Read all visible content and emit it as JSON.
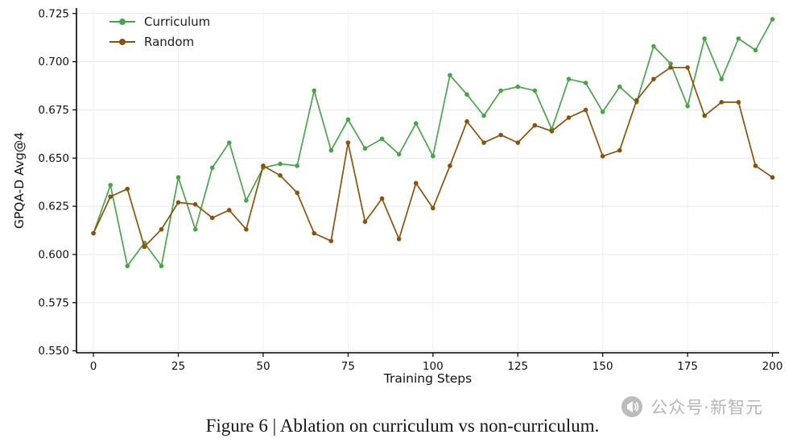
{
  "figure": {
    "caption": "Figure 6 | Ablation on curriculum vs non-curriculum."
  },
  "watermark": {
    "text": "公众号·新智元"
  },
  "chart_data": {
    "type": "line",
    "title": "",
    "xlabel": "Training Steps",
    "ylabel": "GPQA-D Avg@4",
    "xlim": [
      -5,
      202
    ],
    "ylim": [
      0.549,
      0.727
    ],
    "grid": true,
    "legend_position": "upper left",
    "xticks": [
      0,
      25,
      50,
      75,
      100,
      125,
      150,
      175,
      200
    ],
    "xtick_labels": [
      "0",
      "25",
      "50",
      "75",
      "100",
      "125",
      "150",
      "175",
      "200"
    ],
    "yticks": [
      0.55,
      0.575,
      0.6,
      0.625,
      0.65,
      0.675,
      0.7,
      0.725
    ],
    "ytick_labels": [
      "0.550",
      "0.575",
      "0.600",
      "0.625",
      "0.650",
      "0.675",
      "0.700",
      "0.725"
    ],
    "x": [
      0,
      5,
      10,
      15,
      20,
      25,
      30,
      35,
      40,
      45,
      50,
      55,
      60,
      65,
      70,
      75,
      80,
      85,
      90,
      95,
      100,
      105,
      110,
      115,
      120,
      125,
      130,
      135,
      140,
      145,
      150,
      155,
      160,
      165,
      170,
      175,
      180,
      185,
      190,
      195,
      200
    ],
    "series": [
      {
        "name": "Curriculum",
        "color": "#4aa54a",
        "values": [
          0.611,
          0.636,
          0.594,
          0.606,
          0.594,
          0.64,
          0.613,
          0.645,
          0.658,
          0.628,
          0.645,
          0.647,
          0.646,
          0.685,
          0.654,
          0.67,
          0.655,
          0.66,
          0.652,
          0.668,
          0.651,
          0.693,
          0.683,
          0.672,
          0.685,
          0.687,
          0.685,
          0.665,
          0.691,
          0.689,
          0.674,
          0.687,
          0.679,
          0.708,
          0.699,
          0.677,
          0.712,
          0.691,
          0.712,
          0.706,
          0.722
        ]
      },
      {
        "name": "Random",
        "color": "#8c510a",
        "values": [
          0.611,
          0.63,
          0.634,
          0.604,
          0.613,
          0.627,
          0.626,
          0.619,
          0.623,
          0.613,
          0.646,
          0.641,
          0.632,
          0.611,
          0.607,
          0.658,
          0.617,
          0.629,
          0.608,
          0.637,
          0.624,
          0.646,
          0.669,
          0.658,
          0.662,
          0.658,
          0.667,
          0.664,
          0.671,
          0.675,
          0.651,
          0.654,
          0.68,
          0.691,
          0.697,
          0.697,
          0.672,
          0.679,
          0.679,
          0.646,
          0.64
        ]
      }
    ]
  }
}
